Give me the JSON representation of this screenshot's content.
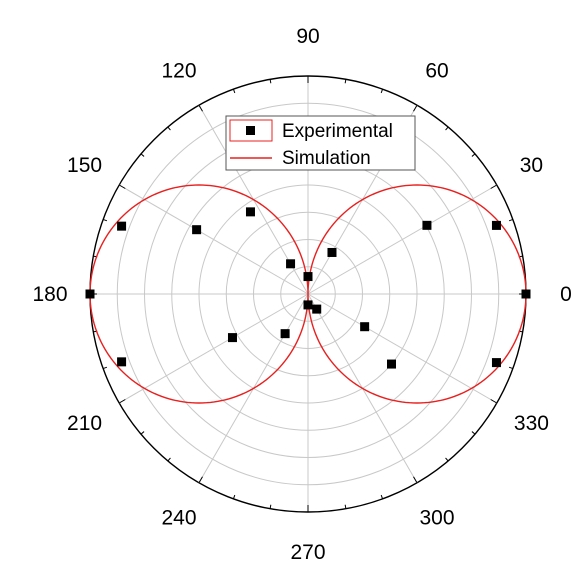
{
  "chart_data": {
    "type": "polar",
    "angle_unit": "degrees",
    "angle_ticks": [
      0,
      30,
      60,
      90,
      120,
      150,
      180,
      210,
      240,
      270,
      300,
      330
    ],
    "angle_tick_labels": [
      "0",
      "30",
      "60",
      "90",
      "120",
      "150",
      "180",
      "210",
      "240",
      "270",
      "300",
      "330"
    ],
    "radial_range": [
      0,
      1
    ],
    "radial_gridlines": 8,
    "grid": true,
    "legend_position": "top-center",
    "series": [
      {
        "name": "Experimental",
        "kind": "scatter",
        "marker": "square",
        "color": "#000000",
        "points": [
          {
            "theta": 0,
            "r": 1.0
          },
          {
            "theta": 20,
            "r": 0.92
          },
          {
            "theta": 30,
            "r": 0.63
          },
          {
            "theta": 60,
            "r": 0.22
          },
          {
            "theta": 90,
            "r": 0.08
          },
          {
            "theta": 120,
            "r": 0.16
          },
          {
            "theta": 125,
            "r": 0.46
          },
          {
            "theta": 150,
            "r": 0.59
          },
          {
            "theta": 160,
            "r": 0.91
          },
          {
            "theta": 180,
            "r": 1.0
          },
          {
            "theta": 200,
            "r": 0.91
          },
          {
            "theta": 210,
            "r": 0.4
          },
          {
            "theta": 240,
            "r": 0.21
          },
          {
            "theta": 270,
            "r": 0.05
          },
          {
            "theta": 300,
            "r": 0.08
          },
          {
            "theta": 320,
            "r": 0.5
          },
          {
            "theta": 330,
            "r": 0.3
          },
          {
            "theta": 340,
            "r": 0.92
          }
        ]
      },
      {
        "name": "Simulation",
        "kind": "line",
        "color": "#e8201f",
        "function": "r = |cos(theta)|"
      }
    ]
  }
}
